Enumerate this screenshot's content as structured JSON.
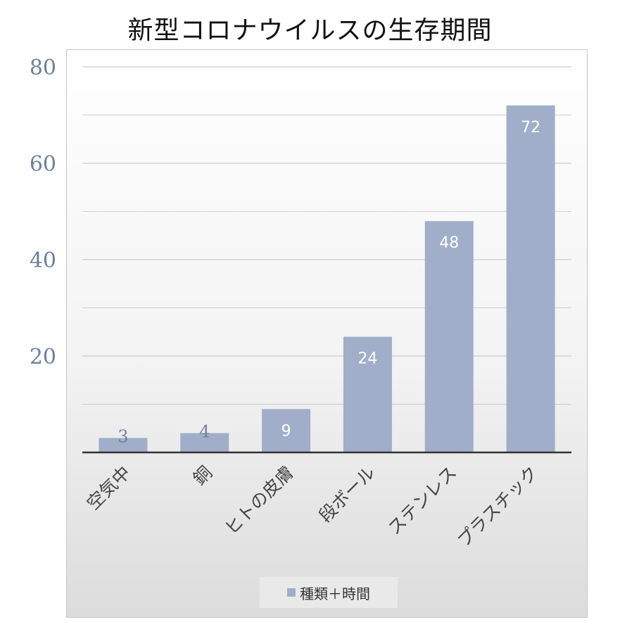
{
  "chart_data": {
    "type": "bar",
    "title": "新型コロナウイルスの生存期間",
    "categories": [
      "空気中",
      "銅",
      "ヒトの皮膚",
      "段ボール",
      "ステンレス",
      "プラスチック"
    ],
    "series": [
      {
        "name": "種類＋時間",
        "values": [
          3,
          4,
          9,
          24,
          48,
          72
        ]
      }
    ],
    "value_labels": [
      "3",
      "4",
      "9",
      "24",
      "48",
      "72"
    ],
    "xlabel": "",
    "ylabel": "",
    "ylim": [
      0,
      80
    ],
    "yticks": [
      20,
      40,
      60,
      80
    ],
    "ytick_labels": [
      "20",
      "40",
      "60",
      "80"
    ],
    "grid": true,
    "legend_position": "bottom",
    "colors": {
      "bar": "#a1aec9",
      "axis_text": "#6f7f9c",
      "gridline": "#c0c0c0",
      "axis_line": "#333333",
      "label_light": "#ffffff",
      "label_dark": "#6f7f9c"
    }
  }
}
